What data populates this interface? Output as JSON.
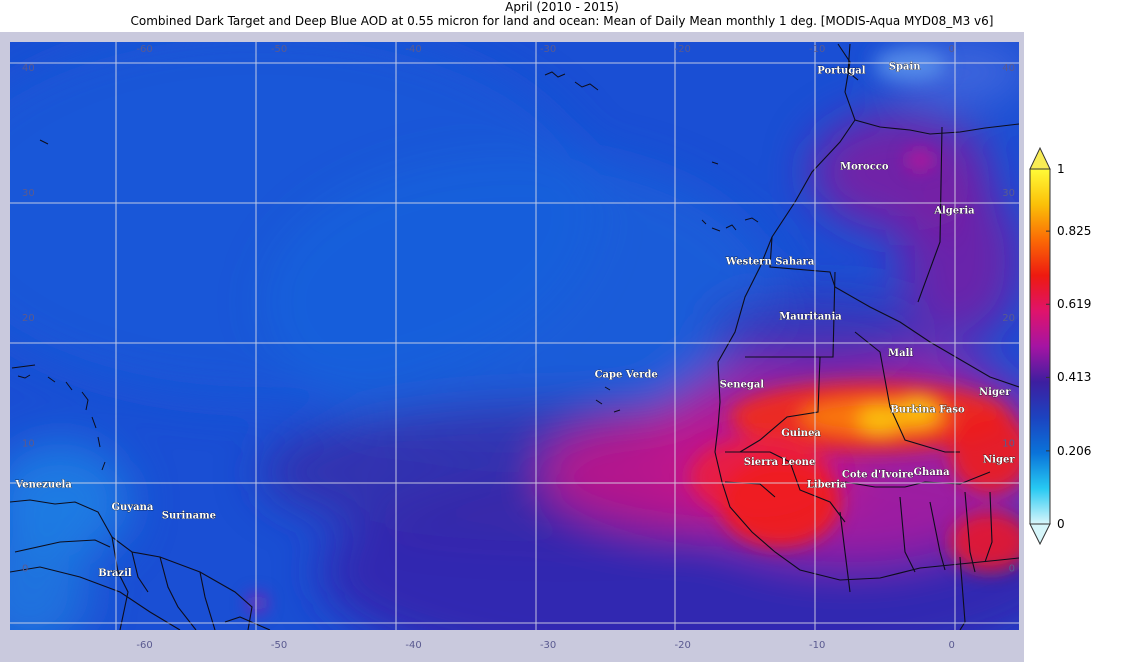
{
  "title": {
    "line1": "April (2010 - 2015)",
    "line2": "Combined Dark Target and Deep Blue AOD at 0.55 micron for land and ocean: Mean of Daily Mean monthly 1 deg. [MODIS-Aqua MYD08_M3 v6]"
  },
  "map": {
    "lon_range": [
      -70,
      5
    ],
    "lat_range": [
      -5,
      42
    ],
    "lon_ticks": [
      "-60",
      "-50",
      "-40",
      "-30",
      "-20",
      "-10",
      "0"
    ],
    "lat_ticks": [
      "40",
      "30",
      "20",
      "10",
      "0"
    ],
    "countries": [
      {
        "name": "Portugal",
        "lon": -8.2,
        "lat": 39.5
      },
      {
        "name": "Spain",
        "lon": -3.5,
        "lat": 39.8
      },
      {
        "name": "Morocco",
        "lon": -6.5,
        "lat": 31.8
      },
      {
        "name": "Algeria",
        "lon": 0.2,
        "lat": 28.3
      },
      {
        "name": "Western Sahara",
        "lon": -13.5,
        "lat": 24.2
      },
      {
        "name": "Mauritania",
        "lon": -10.5,
        "lat": 19.8
      },
      {
        "name": "Mali",
        "lon": -3.8,
        "lat": 16.9
      },
      {
        "name": "Cape Verde",
        "lon": -24.2,
        "lat": 15.2
      },
      {
        "name": "Senegal",
        "lon": -15.6,
        "lat": 14.4
      },
      {
        "name": "Niger",
        "lon": 3.2,
        "lat": 13.8
      },
      {
        "name": "Burkina Faso",
        "lon": -1.8,
        "lat": 12.4
      },
      {
        "name": "Guinea",
        "lon": -11.2,
        "lat": 10.5
      },
      {
        "name": "Niger",
        "lon": 3.5,
        "lat": 8.4
      },
      {
        "name": "Sierra Leone",
        "lon": -12.8,
        "lat": 8.2
      },
      {
        "name": "Cote d'Ivoire",
        "lon": -5.5,
        "lat": 7.2
      },
      {
        "name": "Ghana",
        "lon": -1.5,
        "lat": 7.4
      },
      {
        "name": "Liberia",
        "lon": -9.3,
        "lat": 6.4
      },
      {
        "name": "Venezuela",
        "lon": -67.5,
        "lat": 6.4
      },
      {
        "name": "Guyana",
        "lon": -60.9,
        "lat": 4.6
      },
      {
        "name": "Suriname",
        "lon": -56.7,
        "lat": 3.9
      },
      {
        "name": "Brazil",
        "lon": -62.2,
        "lat": -0.7
      }
    ]
  },
  "colorbar": {
    "min": 0,
    "max": 1,
    "tick_labels": [
      "1",
      "0.825",
      "0.619",
      "0.413",
      "0.206",
      "0"
    ],
    "tick_values": [
      1,
      0.825,
      0.619,
      0.413,
      0.206,
      0
    ],
    "colors": [
      "#d8f6fa",
      "#27c9f2",
      "#0a73d9",
      "#1c43c0",
      "#3d1ea0",
      "#a514a3",
      "#e0136b",
      "#ee1a10",
      "#fb6a05",
      "#fbc008",
      "#fffb38"
    ]
  }
}
